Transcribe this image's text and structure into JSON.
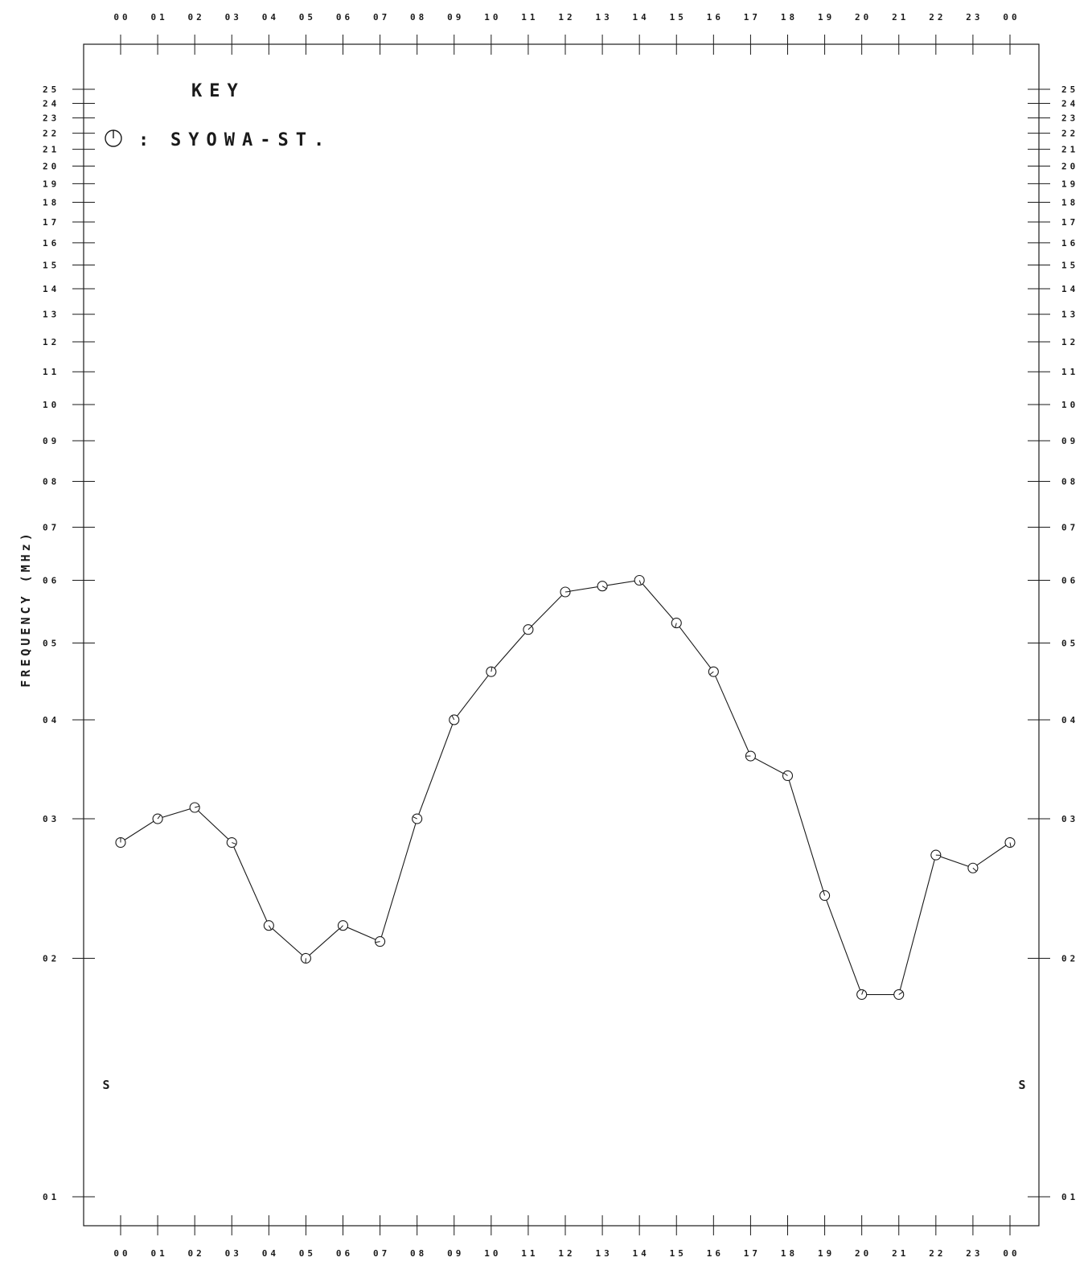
{
  "chart_data": {
    "type": "line",
    "title": "",
    "xlabel": "",
    "ylabel": "FREQUENCY (MHz)",
    "x_tick_labels": [
      "00",
      "01",
      "02",
      "03",
      "04",
      "05",
      "06",
      "07",
      "08",
      "09",
      "10",
      "11",
      "12",
      "13",
      "14",
      "15",
      "16",
      "17",
      "18",
      "19",
      "20",
      "21",
      "22",
      "23",
      "00"
    ],
    "y_tick_labels": [
      "01",
      "02",
      "03",
      "04",
      "05",
      "06",
      "07",
      "08",
      "09",
      "10",
      "11",
      "12",
      "13",
      "14",
      "15",
      "16",
      "17",
      "18",
      "19",
      "20",
      "21",
      "22",
      "23",
      "24",
      "25"
    ],
    "xlim": [
      0,
      24
    ],
    "ylim": [
      1,
      25
    ],
    "y_scale": "log",
    "grid": false,
    "key": {
      "heading": "KEY",
      "entries": [
        {
          "separator": ":",
          "label": "SYOWA-ST."
        }
      ]
    },
    "end_markers": [
      "S",
      "S"
    ],
    "series": [
      {
        "x": [
          0,
          1,
          2,
          3,
          4,
          5,
          6,
          7,
          8,
          9,
          10,
          11,
          12,
          13,
          14,
          15,
          16,
          17,
          18,
          19,
          20,
          21,
          22,
          23,
          24
        ],
        "values": [
          2.8,
          3.0,
          3.1,
          2.8,
          2.2,
          2.0,
          2.2,
          2.1,
          3.0,
          4.0,
          4.6,
          5.2,
          5.8,
          5.9,
          6.0,
          5.3,
          4.6,
          3.6,
          3.4,
          2.4,
          1.8,
          1.8,
          2.7,
          2.6,
          2.8
        ]
      }
    ]
  }
}
